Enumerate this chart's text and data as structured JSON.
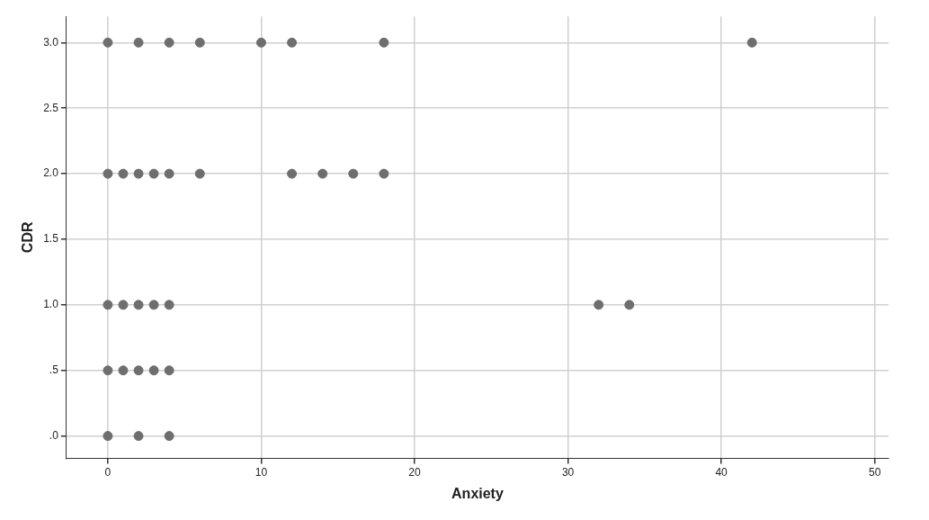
{
  "chart_data": {
    "type": "scatter",
    "xlabel": "Anxiety",
    "ylabel": "CDR",
    "series": [
      {
        "color": "#6e6e6e",
        "x": [
          0,
          2,
          4,
          6,
          10,
          12,
          18,
          42,
          0,
          1,
          2,
          3,
          4,
          6,
          12,
          14,
          16,
          18,
          0,
          1,
          2,
          3,
          4,
          32,
          34,
          0,
          1,
          2,
          3,
          4,
          0,
          2,
          4
        ],
        "values": [
          3,
          3,
          3,
          3,
          3,
          3,
          3,
          3,
          2,
          2,
          2,
          2,
          2,
          2,
          2,
          2,
          2,
          2,
          1,
          1,
          1,
          1,
          1,
          1,
          1,
          0.5,
          0.5,
          0.5,
          0.5,
          0.5,
          0,
          0,
          0
        ]
      }
    ],
    "xlim": [
      -2.7,
      50.9
    ],
    "xticks": [
      0,
      10,
      20,
      30,
      40,
      50
    ],
    "ylim": [
      -0.17,
      3.2
    ],
    "yticks": [
      {
        "value": 0,
        "label": ".0"
      },
      {
        "value": 0.5,
        "label": ".5"
      },
      {
        "value": 1,
        "label": "1.0"
      },
      {
        "value": 1.5,
        "label": "1.5"
      },
      {
        "value": 2,
        "label": "2.0"
      },
      {
        "value": 2.5,
        "label": "2.5"
      },
      {
        "value": 3,
        "label": "3.0"
      }
    ],
    "grid": true,
    "marker": "circle",
    "legend": false
  }
}
